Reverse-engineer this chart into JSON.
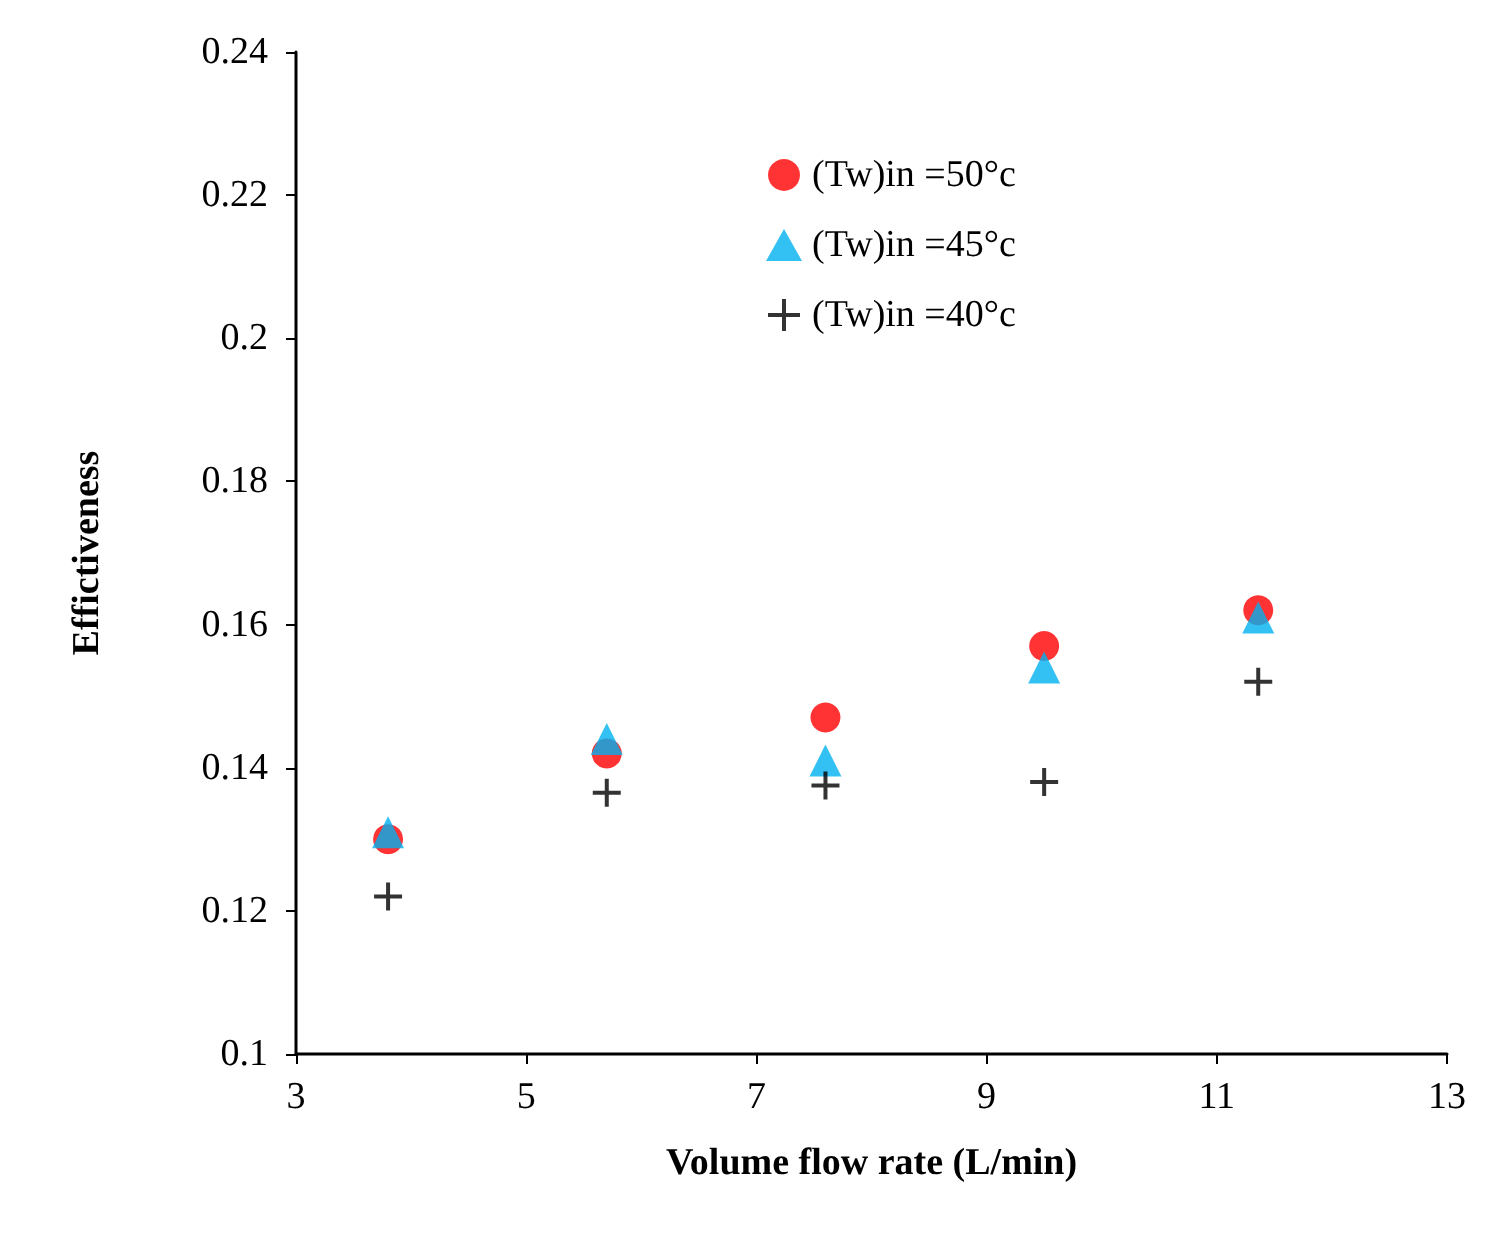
{
  "chart_data": {
    "type": "scatter",
    "xlabel": "Volume flow rate (L/min)",
    "ylabel": "Effictiveness",
    "x": [
      3.8,
      5.7,
      7.6,
      9.5,
      11.36
    ],
    "series": [
      {
        "name": "(Tw)in =50°c",
        "color": "#ff0000",
        "marker": "circle",
        "values": [
          0.13,
          0.142,
          0.147,
          0.157,
          0.162
        ]
      },
      {
        "name": "(Tw)in =45°c",
        "color": "#00b0f0",
        "marker": "triangle",
        "values": [
          0.131,
          0.144,
          0.141,
          0.154,
          0.161
        ]
      },
      {
        "name": "(Tw)in =40°c",
        "color": "#000000",
        "marker": "cross",
        "values": [
          0.122,
          0.1365,
          0.1375,
          0.138,
          0.152
        ]
      }
    ],
    "xlim": [
      3,
      13
    ],
    "xticks": [
      3,
      5,
      7,
      9,
      11,
      13
    ],
    "ylim": [
      0.1,
      0.24
    ],
    "yticks": [
      0.1,
      0.12,
      0.14,
      0.16,
      0.18,
      0.2,
      0.22,
      0.24
    ],
    "grid": false,
    "legend": "top"
  }
}
